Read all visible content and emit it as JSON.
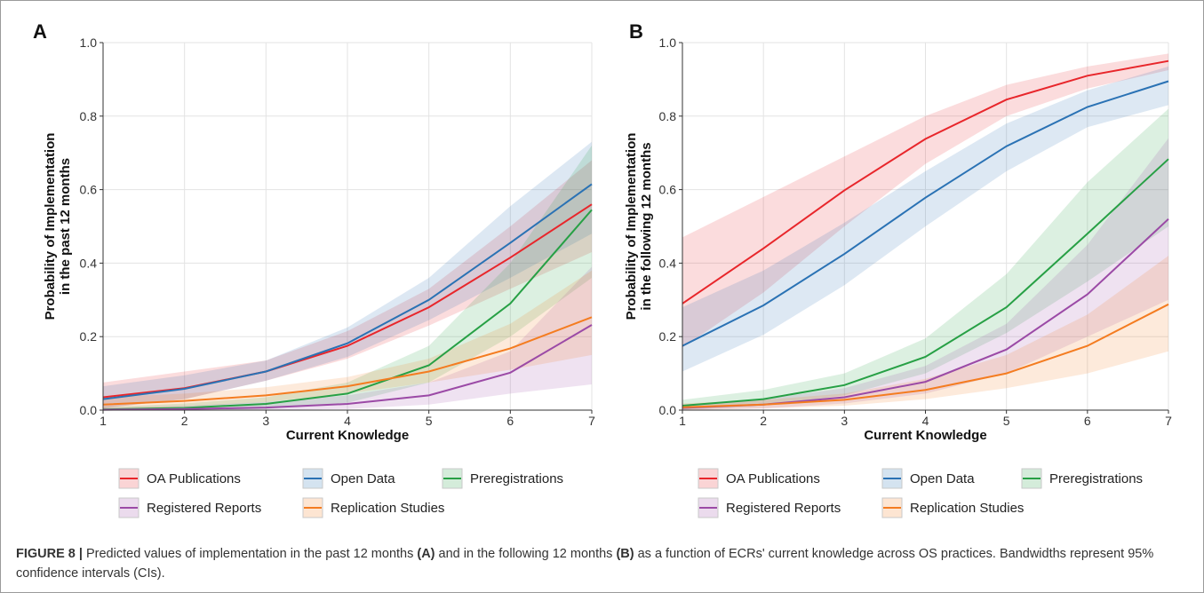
{
  "caption": {
    "label": "FIGURE 8 |",
    "t1": " Predicted values of implementation in the past 12 months ",
    "a": "(A)",
    "t2": " and in the following 12 months ",
    "b": "(B)",
    "t3": " as a function of ECRs' current knowledge across OS practices. Bandwidths represent 95% confidence intervals (CIs)."
  },
  "legend": {
    "entries": [
      "OA Publications",
      "Open Data",
      "Preregistrations",
      "Registered Reports",
      "Replication Studies"
    ]
  },
  "colors": {
    "OA Publications": "#e8262b",
    "Open Data": "#2a72b4",
    "Preregistrations": "#27a045",
    "Registered Reports": "#9b4aa6",
    "Replication Studies": "#f47c20"
  },
  "chart_data": [
    {
      "type": "line",
      "panel_label": "A",
      "xlabel": "Current Knowledge",
      "ylabel": [
        "Probability of Implementation",
        "in the past 12 months"
      ],
      "x": [
        1,
        2,
        3,
        4,
        5,
        6,
        7
      ],
      "xlim": [
        1,
        7
      ],
      "ylim": [
        0,
        1
      ],
      "xticks": [
        "1",
        "2",
        "3",
        "4",
        "5",
        "6",
        "7"
      ],
      "yticks": [
        "0.0",
        "0.2",
        "0.4",
        "0.6",
        "0.8",
        "1.0"
      ],
      "grid": true,
      "series": [
        {
          "name": "OA Publications",
          "values": [
            0.035,
            0.06,
            0.105,
            0.175,
            0.28,
            0.415,
            0.56
          ],
          "lower": [
            0.005,
            0.03,
            0.08,
            0.14,
            0.23,
            0.33,
            0.43
          ],
          "upper": [
            0.075,
            0.105,
            0.135,
            0.215,
            0.33,
            0.5,
            0.68
          ]
        },
        {
          "name": "Open Data",
          "values": [
            0.03,
            0.058,
            0.105,
            0.182,
            0.3,
            0.455,
            0.615
          ],
          "lower": [
            0.005,
            0.03,
            0.08,
            0.145,
            0.245,
            0.36,
            0.48
          ],
          "upper": [
            0.065,
            0.095,
            0.135,
            0.225,
            0.36,
            0.555,
            0.73
          ]
        },
        {
          "name": "Preregistrations",
          "values": [
            0.002,
            0.006,
            0.017,
            0.045,
            0.122,
            0.29,
            0.545
          ],
          "lower": [
            0.0,
            0.0,
            0.003,
            0.02,
            0.075,
            0.2,
            0.36
          ],
          "upper": [
            0.008,
            0.018,
            0.035,
            0.075,
            0.175,
            0.4,
            0.72
          ]
        },
        {
          "name": "Registered Reports",
          "values": [
            0.001,
            0.003,
            0.007,
            0.017,
            0.04,
            0.102,
            0.232
          ],
          "lower": [
            0.0,
            0.0,
            0.0,
            0.003,
            0.015,
            0.045,
            0.07
          ],
          "upper": [
            0.006,
            0.012,
            0.022,
            0.04,
            0.075,
            0.16,
            0.39
          ]
        },
        {
          "name": "Replication Studies",
          "values": [
            0.015,
            0.025,
            0.04,
            0.065,
            0.105,
            0.168,
            0.253
          ],
          "lower": [
            0.0,
            0.01,
            0.022,
            0.045,
            0.075,
            0.11,
            0.15
          ],
          "upper": [
            0.035,
            0.045,
            0.062,
            0.09,
            0.14,
            0.235,
            0.38
          ]
        }
      ]
    },
    {
      "type": "line",
      "panel_label": "B",
      "xlabel": "Current Knowledge",
      "ylabel": [
        "Probability of Implementation",
        "in the following 12 months"
      ],
      "x": [
        1,
        2,
        3,
        4,
        5,
        6,
        7
      ],
      "xlim": [
        1,
        7
      ],
      "ylim": [
        0,
        1
      ],
      "xticks": [
        "1",
        "2",
        "3",
        "4",
        "5",
        "6",
        "7"
      ],
      "yticks": [
        "0.0",
        "0.2",
        "0.4",
        "0.6",
        "0.8",
        "1.0"
      ],
      "grid": true,
      "series": [
        {
          "name": "OA Publications",
          "values": [
            0.29,
            0.44,
            0.598,
            0.738,
            0.845,
            0.91,
            0.95
          ],
          "lower": [
            0.17,
            0.32,
            0.5,
            0.67,
            0.8,
            0.875,
            0.925
          ],
          "upper": [
            0.47,
            0.58,
            0.69,
            0.8,
            0.885,
            0.935,
            0.97
          ]
        },
        {
          "name": "Open Data",
          "values": [
            0.175,
            0.285,
            0.425,
            0.578,
            0.718,
            0.825,
            0.895
          ],
          "lower": [
            0.105,
            0.205,
            0.34,
            0.5,
            0.65,
            0.77,
            0.83
          ],
          "upper": [
            0.28,
            0.38,
            0.51,
            0.65,
            0.78,
            0.87,
            0.935
          ]
        },
        {
          "name": "Preregistrations",
          "values": [
            0.012,
            0.03,
            0.068,
            0.145,
            0.28,
            0.48,
            0.683
          ],
          "lower": [
            0.002,
            0.012,
            0.04,
            0.1,
            0.21,
            0.35,
            0.5
          ],
          "upper": [
            0.028,
            0.055,
            0.1,
            0.195,
            0.37,
            0.62,
            0.82
          ]
        },
        {
          "name": "Registered Reports",
          "values": [
            0.006,
            0.015,
            0.035,
            0.077,
            0.165,
            0.315,
            0.52
          ],
          "lower": [
            0.0,
            0.004,
            0.018,
            0.045,
            0.1,
            0.2,
            0.3
          ],
          "upper": [
            0.015,
            0.03,
            0.06,
            0.12,
            0.235,
            0.45,
            0.74
          ]
        },
        {
          "name": "Replication Studies",
          "values": [
            0.008,
            0.015,
            0.028,
            0.055,
            0.1,
            0.175,
            0.288
          ],
          "lower": [
            0.0,
            0.005,
            0.012,
            0.03,
            0.06,
            0.1,
            0.16
          ],
          "upper": [
            0.018,
            0.028,
            0.045,
            0.085,
            0.15,
            0.26,
            0.42
          ]
        }
      ]
    }
  ]
}
